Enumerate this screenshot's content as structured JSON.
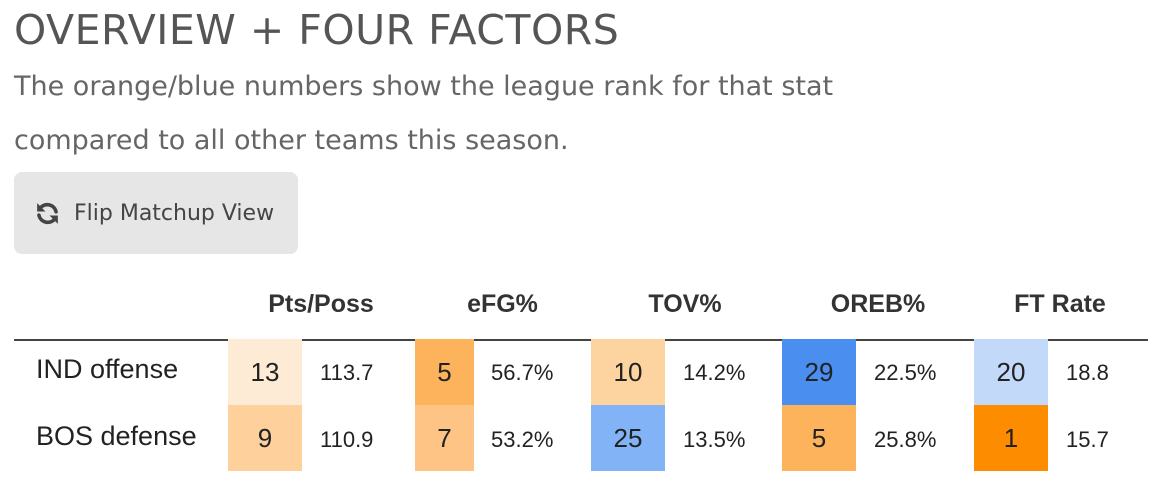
{
  "title": "OVERVIEW + FOUR FACTORS",
  "subtitle": "The orange/blue numbers show the league rank for that stat compared to all other teams this season.",
  "flip_button": {
    "label": "Flip Matchup View",
    "icon": "refresh-icon"
  },
  "columns": [
    "Pts/Poss",
    "eFG%",
    "TOV%",
    "OREB%",
    "FT Rate"
  ],
  "rows": [
    {
      "label": "IND offense",
      "cells": [
        {
          "rank": "13",
          "value": "113.7",
          "color": "#fdebd6"
        },
        {
          "rank": "5",
          "value": "56.7%",
          "color": "#fdb35c"
        },
        {
          "rank": "10",
          "value": "14.2%",
          "color": "#fdd49f"
        },
        {
          "rank": "29",
          "value": "22.5%",
          "color": "#4a8ff0"
        },
        {
          "rank": "20",
          "value": "18.8",
          "color": "#c2d9f9"
        }
      ]
    },
    {
      "label": "BOS defense",
      "cells": [
        {
          "rank": "9",
          "value": "110.9",
          "color": "#fdd09c"
        },
        {
          "rank": "7",
          "value": "53.2%",
          "color": "#fdc486"
        },
        {
          "rank": "25",
          "value": "13.5%",
          "color": "#82b3f6"
        },
        {
          "rank": "5",
          "value": "25.8%",
          "color": "#fdb35c"
        },
        {
          "rank": "1",
          "value": "15.7",
          "color": "#fe8c00"
        }
      ]
    }
  ]
}
